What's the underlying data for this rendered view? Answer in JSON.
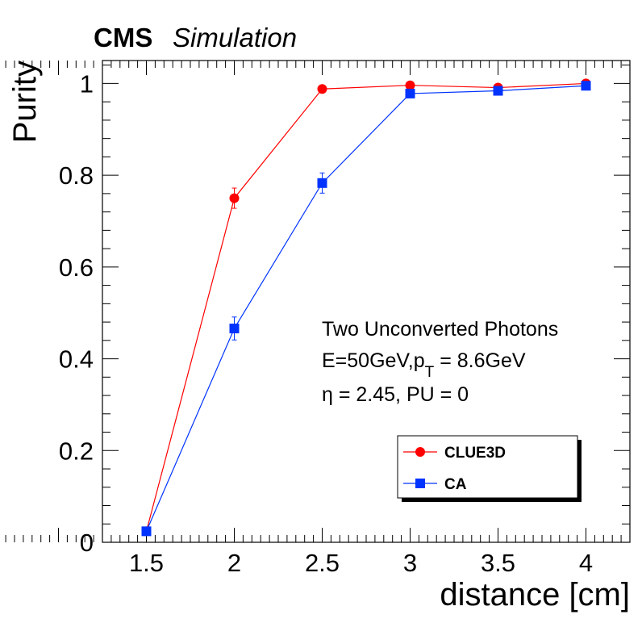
{
  "header": {
    "experiment": "CMS",
    "label": "Simulation"
  },
  "chart_data": {
    "type": "line",
    "title": "",
    "xlabel": "distance [cm]",
    "ylabel": "Purity",
    "xlim": [
      1.25,
      4.25
    ],
    "ylim": [
      0,
      1.05
    ],
    "x_ticks": [
      "1.5",
      "2",
      "2.5",
      "3",
      "3.5",
      "4"
    ],
    "y_ticks": [
      "0",
      "0.2",
      "0.4",
      "0.6",
      "0.8",
      "1"
    ],
    "grid": false,
    "legend_position": "lower-right",
    "annotations": [
      "Two Unconverted Photons",
      "E=50GeV,p",
      "T",
      " = 8.6GeV",
      "η = 2.45, PU = 0"
    ],
    "series": [
      {
        "name": "CLUE3D",
        "color": "#ff0000",
        "marker": "circle",
        "x": [
          1.5,
          2,
          2.5,
          3,
          3.5,
          4
        ],
        "y": [
          0.024,
          0.75,
          0.988,
          0.996,
          0.991,
          1.0
        ],
        "yerr": [
          0.004,
          0.022,
          0.004,
          0.003,
          0.003,
          0.002
        ]
      },
      {
        "name": "CA",
        "color": "#0033ff",
        "marker": "square",
        "x": [
          1.5,
          2,
          2.5,
          3,
          3.5,
          4
        ],
        "y": [
          0.024,
          0.466,
          0.783,
          0.978,
          0.984,
          0.995
        ],
        "yerr": [
          0.004,
          0.025,
          0.022,
          0.004,
          0.004,
          0.003
        ]
      }
    ]
  }
}
